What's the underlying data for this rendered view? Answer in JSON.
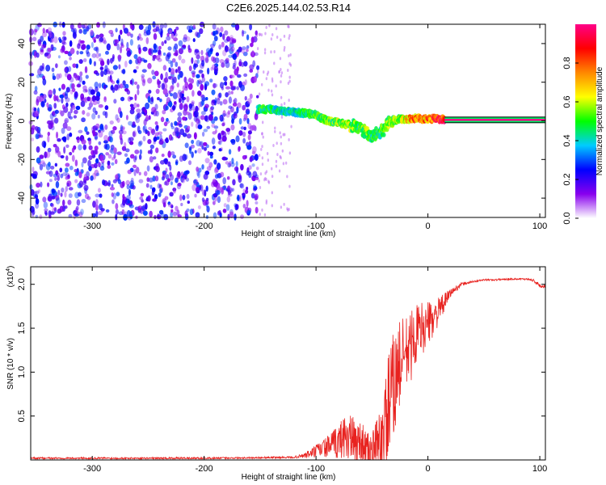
{
  "title": "C2E6.2025.144.02.53.R14",
  "chart_data": [
    {
      "type": "heatmap",
      "xlabel": "Height of straight line (km)",
      "ylabel": "Frequency (Hz)",
      "xlim": [
        -355,
        105
      ],
      "ylim": [
        -50,
        50
      ],
      "x_ticks": [
        -300,
        -200,
        -100,
        0,
        100
      ],
      "y_ticks": [
        -40,
        -20,
        0,
        20,
        40
      ],
      "colorbar": {
        "label": "Normalized spectral amplitude",
        "range": [
          0,
          1
        ],
        "ticks": [
          0.0,
          0.2,
          0.4,
          0.6,
          0.8
        ],
        "colors": [
          "#ffffff",
          "#8800ee",
          "#0000ff",
          "#00ccff",
          "#00ff00",
          "#ffff00",
          "#ff8800",
          "#ff0000",
          "#ff0088"
        ]
      },
      "noise_region_x": [
        -355,
        -152
      ],
      "signal_ridge": {
        "x": [
          -152,
          -140,
          -130,
          -120,
          -110,
          -100,
          -90,
          -80,
          -70,
          -60,
          -55,
          -50,
          -45,
          -40,
          -35,
          -30,
          -25,
          -20,
          -15,
          -10,
          -5,
          0,
          5,
          10,
          15,
          105
        ],
        "frequency": [
          6,
          6,
          5,
          4.5,
          4,
          3,
          0,
          -1,
          -2,
          -4,
          -6,
          -8,
          -6,
          -5,
          -1,
          0,
          1,
          1,
          1,
          1.5,
          1,
          1,
          1,
          1,
          0.5,
          0.5
        ],
        "amplitude": [
          0.5,
          0.5,
          0.45,
          0.45,
          0.5,
          0.55,
          0.55,
          0.6,
          0.6,
          0.55,
          0.6,
          0.5,
          0.5,
          0.55,
          0.6,
          0.6,
          0.65,
          0.7,
          0.8,
          0.85,
          0.8,
          0.85,
          0.9,
          0.95,
          1.0,
          1.0
        ]
      }
    },
    {
      "type": "line",
      "xlabel": "Height of straight line (km)",
      "ylabel": "SNR (10 * v/v)",
      "y_multiplier": "(x10",
      "y_multiplier_exp": "4",
      "y_multiplier_close": ")",
      "xlim": [
        -355,
        105
      ],
      "ylim": [
        0,
        2.2
      ],
      "x_ticks": [
        -300,
        -200,
        -100,
        0,
        100
      ],
      "y_ticks": [
        0.5,
        1.0,
        1.5,
        2.0
      ],
      "y_tick_labels": [
        "0.5",
        "1.0",
        "1.5",
        "2.0"
      ],
      "series": [
        {
          "color": "#e8221f",
          "x": [
            -355,
            -300,
            -200,
            -120,
            -110,
            -100,
            -90,
            -80,
            -75,
            -70,
            -65,
            -60,
            -55,
            -50,
            -45,
            -40,
            -35,
            -30,
            -25,
            -20,
            -15,
            -10,
            -5,
            0,
            5,
            10,
            15,
            20,
            30,
            40,
            50,
            60,
            70,
            80,
            90,
            95,
            100,
            105
          ],
          "y": [
            0.02,
            0.02,
            0.02,
            0.03,
            0.05,
            0.1,
            0.15,
            0.2,
            0.28,
            0.25,
            0.2,
            0.22,
            0.12,
            0.1,
            0.15,
            0.25,
            0.55,
            0.9,
            1.1,
            1.2,
            1.3,
            1.45,
            1.5,
            1.55,
            1.62,
            1.7,
            1.8,
            1.9,
            2.0,
            2.03,
            2.05,
            2.05,
            2.06,
            2.06,
            2.06,
            2.04,
            1.98,
            1.98
          ],
          "noise_amplitude": [
            0.01,
            0.01,
            0.01,
            0.01,
            0.03,
            0.08,
            0.12,
            0.2,
            0.25,
            0.3,
            0.25,
            0.25,
            0.2,
            0.2,
            0.35,
            0.5,
            0.7,
            0.6,
            0.5,
            0.45,
            0.4,
            0.35,
            0.3,
            0.25,
            0.2,
            0.15,
            0.1,
            0.05,
            0.02,
            0.01,
            0.01,
            0.01,
            0.01,
            0.01,
            0.01,
            0.02,
            0.02,
            0.02
          ]
        }
      ]
    }
  ]
}
